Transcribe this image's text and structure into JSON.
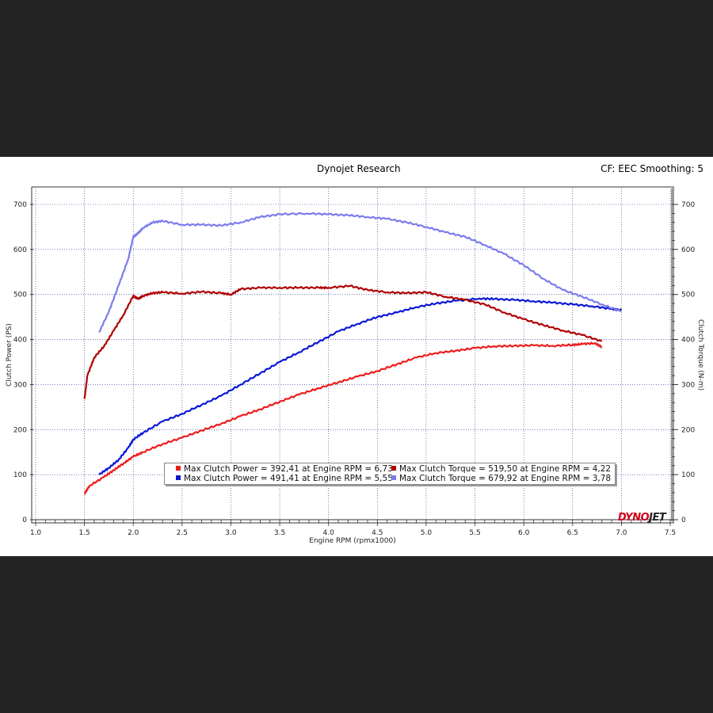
{
  "header": {
    "title": "Dynojet Research",
    "corner": "CF: EEC Smoothing: 5"
  },
  "logo": {
    "part1": "DYNO",
    "part2": "JET"
  },
  "chart_data": {
    "type": "line",
    "xlabel": "Engine RPM (rpmx1000)",
    "ylabel_left": "Clutch Power (PS)",
    "ylabel_right": "Clutch Torque (N-m)",
    "xlim": [
      1.0,
      7.5
    ],
    "ylim": [
      0,
      700
    ],
    "x_ticks": [
      "1.0",
      "1.5",
      "2.0",
      "2.5",
      "3.0",
      "3.5",
      "4.0",
      "4.5",
      "5.0",
      "5.5",
      "6.0",
      "6.5",
      "7.0",
      "7.5"
    ],
    "y_ticks": [
      "0",
      "100",
      "200",
      "300",
      "400",
      "500",
      "600",
      "700"
    ],
    "series": [
      {
        "name": "Max Clutch Power = 392,41 at Engine RPM = 6,73",
        "color": "#ee1c1c",
        "x": [
          1.5,
          1.55,
          1.7,
          1.8,
          1.9,
          2.0,
          2.1,
          2.3,
          2.5,
          2.7,
          2.9,
          3.1,
          3.3,
          3.5,
          3.7,
          3.9,
          4.1,
          4.3,
          4.5,
          4.7,
          4.9,
          5.1,
          5.3,
          5.5,
          5.7,
          5.9,
          6.1,
          6.3,
          6.5,
          6.6,
          6.73,
          6.8
        ],
        "y": [
          57,
          75,
          95,
          110,
          125,
          140,
          150,
          168,
          182,
          198,
          213,
          230,
          245,
          262,
          278,
          292,
          305,
          318,
          330,
          345,
          360,
          370,
          375,
          381,
          385,
          386,
          387,
          386,
          388,
          390,
          392,
          383
        ]
      },
      {
        "name": "Max Clutch Power = 491,41 at Engine RPM = 5,55",
        "color": "#0a17d6",
        "x": [
          1.65,
          1.75,
          1.85,
          1.95,
          2.0,
          2.1,
          2.3,
          2.5,
          2.7,
          2.9,
          3.1,
          3.3,
          3.5,
          3.7,
          3.9,
          4.1,
          4.3,
          4.5,
          4.7,
          4.9,
          5.1,
          5.3,
          5.55,
          5.7,
          5.9,
          6.1,
          6.3,
          6.5,
          6.7,
          6.9,
          7.0
        ],
        "y": [
          100,
          115,
          133,
          160,
          178,
          193,
          218,
          235,
          255,
          275,
          300,
          325,
          350,
          372,
          395,
          418,
          435,
          450,
          460,
          472,
          480,
          486,
          491,
          490,
          488,
          485,
          482,
          478,
          474,
          468,
          465
        ]
      },
      {
        "name": "Max Clutch Torque = 519,50 at Engine RPM = 4,22",
        "color": "#b00000",
        "x": [
          1.5,
          1.53,
          1.6,
          1.7,
          1.8,
          1.9,
          2.0,
          2.05,
          2.1,
          2.2,
          2.3,
          2.5,
          2.7,
          2.9,
          3.0,
          3.1,
          3.3,
          3.5,
          3.7,
          3.9,
          4.0,
          4.22,
          4.4,
          4.6,
          4.8,
          5.0,
          5.2,
          5.4,
          5.6,
          5.8,
          6.0,
          6.2,
          6.4,
          6.6,
          6.8
        ],
        "y": [
          268,
          320,
          360,
          385,
          420,
          455,
          497,
          490,
          497,
          503,
          505,
          502,
          506,
          503,
          500,
          512,
          515,
          515,
          515,
          515,
          515,
          519,
          510,
          505,
          503,
          505,
          495,
          488,
          478,
          460,
          445,
          432,
          420,
          410,
          396
        ]
      },
      {
        "name": "Max Clutch Torque = 679,92 at Engine RPM = 3,78",
        "color": "#7b7bee",
        "x": [
          1.65,
          1.75,
          1.85,
          1.95,
          2.0,
          2.05,
          2.1,
          2.2,
          2.3,
          2.5,
          2.7,
          2.9,
          3.1,
          3.3,
          3.5,
          3.78,
          4.0,
          4.2,
          4.4,
          4.6,
          4.8,
          5.0,
          5.2,
          5.4,
          5.6,
          5.8,
          6.0,
          6.2,
          6.4,
          6.6,
          6.8,
          7.0
        ],
        "y": [
          416,
          462,
          520,
          580,
          628,
          636,
          648,
          660,
          663,
          655,
          655,
          653,
          660,
          672,
          678,
          680,
          678,
          676,
          672,
          668,
          660,
          650,
          638,
          628,
          610,
          590,
          565,
          535,
          510,
          495,
          478,
          462
        ]
      }
    ]
  }
}
